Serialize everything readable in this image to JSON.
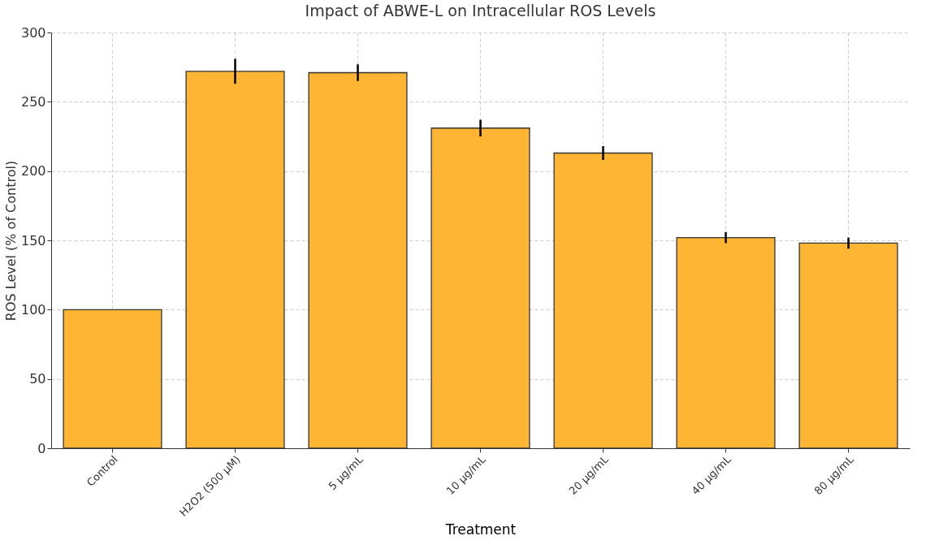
{
  "chart_data": {
    "type": "bar",
    "title": "Impact of ABWE-L on Intracellular ROS Levels",
    "xlabel": "Treatment",
    "ylabel": "ROS Level (% of Control)",
    "categories": [
      "Control",
      "H2O2 (500 µM)",
      "5 µg/mL",
      "10 µg/mL",
      "20 µg/mL",
      "40 µg/mL",
      "80 µg/mL"
    ],
    "values": [
      100,
      272,
      271,
      231,
      213,
      152,
      148
    ],
    "errors": [
      null,
      9,
      6,
      6,
      5,
      4,
      4
    ],
    "color": "#fdb533",
    "ylim": [
      0,
      300
    ],
    "yticks": [
      0,
      50,
      100,
      150,
      200,
      250,
      300
    ],
    "grid": true
  }
}
